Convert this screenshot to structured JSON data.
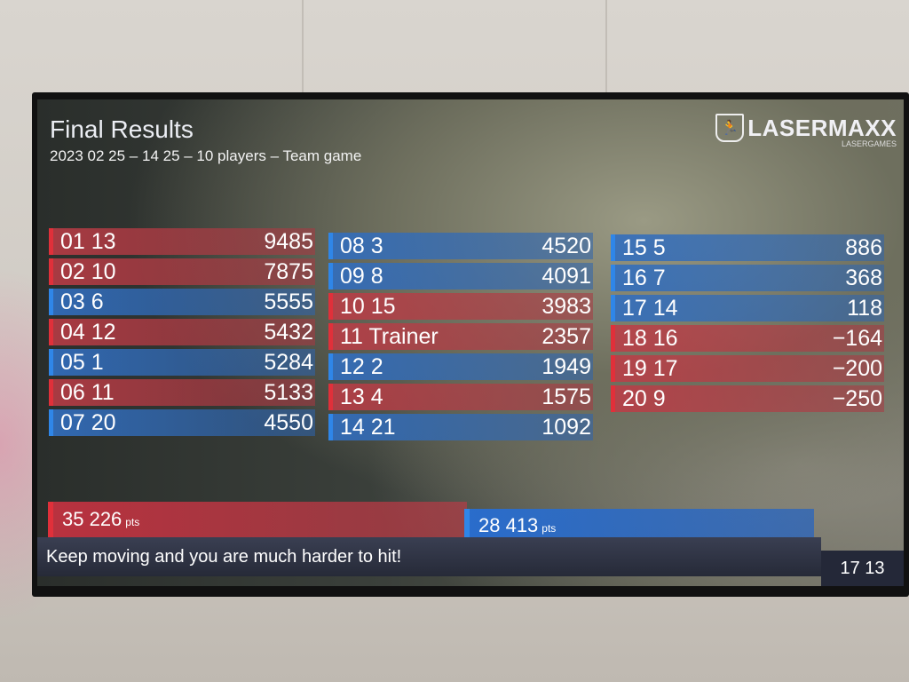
{
  "header": {
    "title": "Final Results",
    "subtitle": "2023 02 25 – 14 25 – 10 players – Team game"
  },
  "logo": {
    "name": "LASERMAXX",
    "tagline": "LASERGAMES",
    "icon": "running-man-icon"
  },
  "colors": {
    "red_team": "#e0303a",
    "blue_team": "#2f86e8",
    "ticker": "#2b2f40"
  },
  "columns": [
    [
      {
        "label": "01 13",
        "score": "9485",
        "team": "red"
      },
      {
        "label": "02 10",
        "score": "7875",
        "team": "red"
      },
      {
        "label": "03 6",
        "score": "5555",
        "team": "blue"
      },
      {
        "label": "04 12",
        "score": "5432",
        "team": "red"
      },
      {
        "label": "05 1",
        "score": "5284",
        "team": "blue"
      },
      {
        "label": "06 11",
        "score": "5133",
        "team": "red"
      },
      {
        "label": "07 20",
        "score": "4550",
        "team": "blue"
      }
    ],
    [
      {
        "label": "08 3",
        "score": "4520",
        "team": "blue"
      },
      {
        "label": "09 8",
        "score": "4091",
        "team": "blue"
      },
      {
        "label": "10 15",
        "score": "3983",
        "team": "red"
      },
      {
        "label": "11 Trainer",
        "score": "2357",
        "team": "red"
      },
      {
        "label": "12 2",
        "score": "1949",
        "team": "blue"
      },
      {
        "label": "13 4",
        "score": "1575",
        "team": "red"
      },
      {
        "label": "14 21",
        "score": "1092",
        "team": "blue"
      }
    ],
    [
      {
        "label": "15 5",
        "score": "886",
        "team": "blue"
      },
      {
        "label": "16 7",
        "score": "368",
        "team": "blue"
      },
      {
        "label": "17 14",
        "score": "118",
        "team": "blue"
      },
      {
        "label": "18 16",
        "score": "−164",
        "team": "red"
      },
      {
        "label": "19 17",
        "score": "−200",
        "team": "red"
      },
      {
        "label": "20 9",
        "score": "−250",
        "team": "red"
      }
    ]
  ],
  "teams": {
    "red": {
      "score": "35 226",
      "unit": "pts"
    },
    "blue": {
      "score": "28 413",
      "unit": "pts"
    }
  },
  "ticker": {
    "message": "Keep moving and you are much harder to hit!",
    "time": "17 13"
  }
}
